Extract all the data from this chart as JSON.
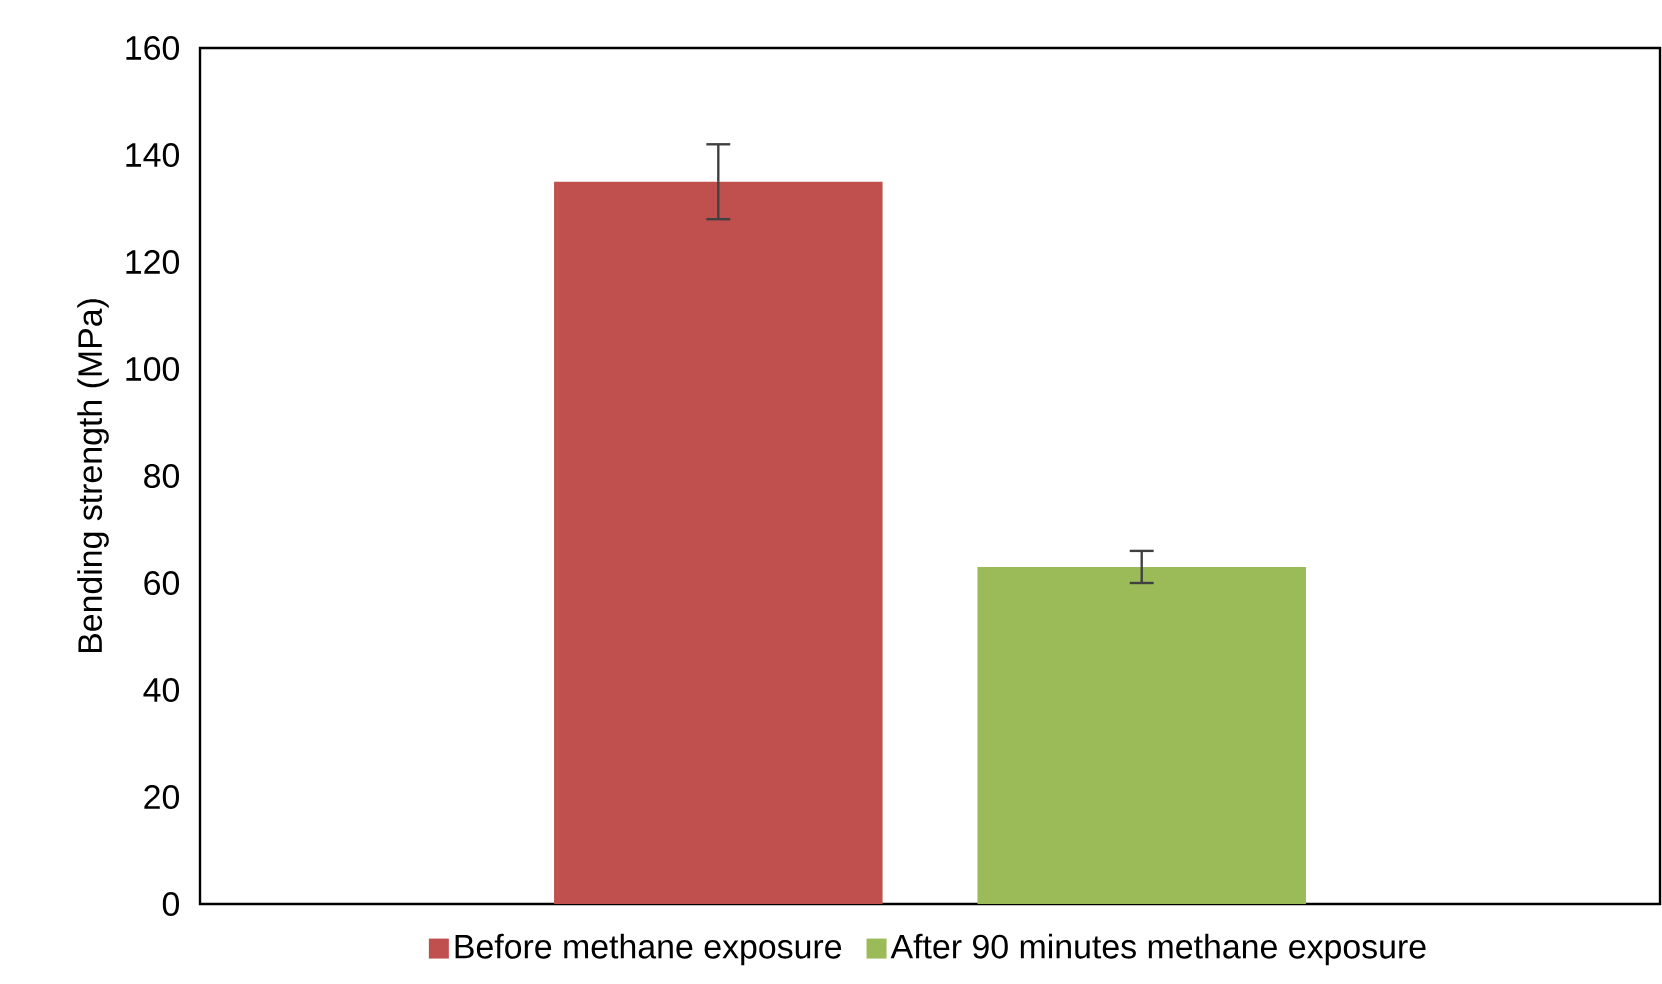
{
  "chart_data": {
    "type": "bar",
    "ylabel": "Bending strength (MPa)",
    "categories": [
      null
    ],
    "series": [
      {
        "name": "Before methane exposure",
        "color": "#c0504d",
        "values": [
          135
        ],
        "errors": [
          7
        ]
      },
      {
        "name": "After 90 minutes methane exposure",
        "color": "#9bbb59",
        "values": [
          63
        ],
        "errors": [
          3
        ]
      }
    ],
    "ylim": [
      0,
      160
    ],
    "yticks": [
      0,
      20,
      40,
      60,
      80,
      100,
      120,
      140,
      160
    ],
    "legend": "bottom"
  }
}
